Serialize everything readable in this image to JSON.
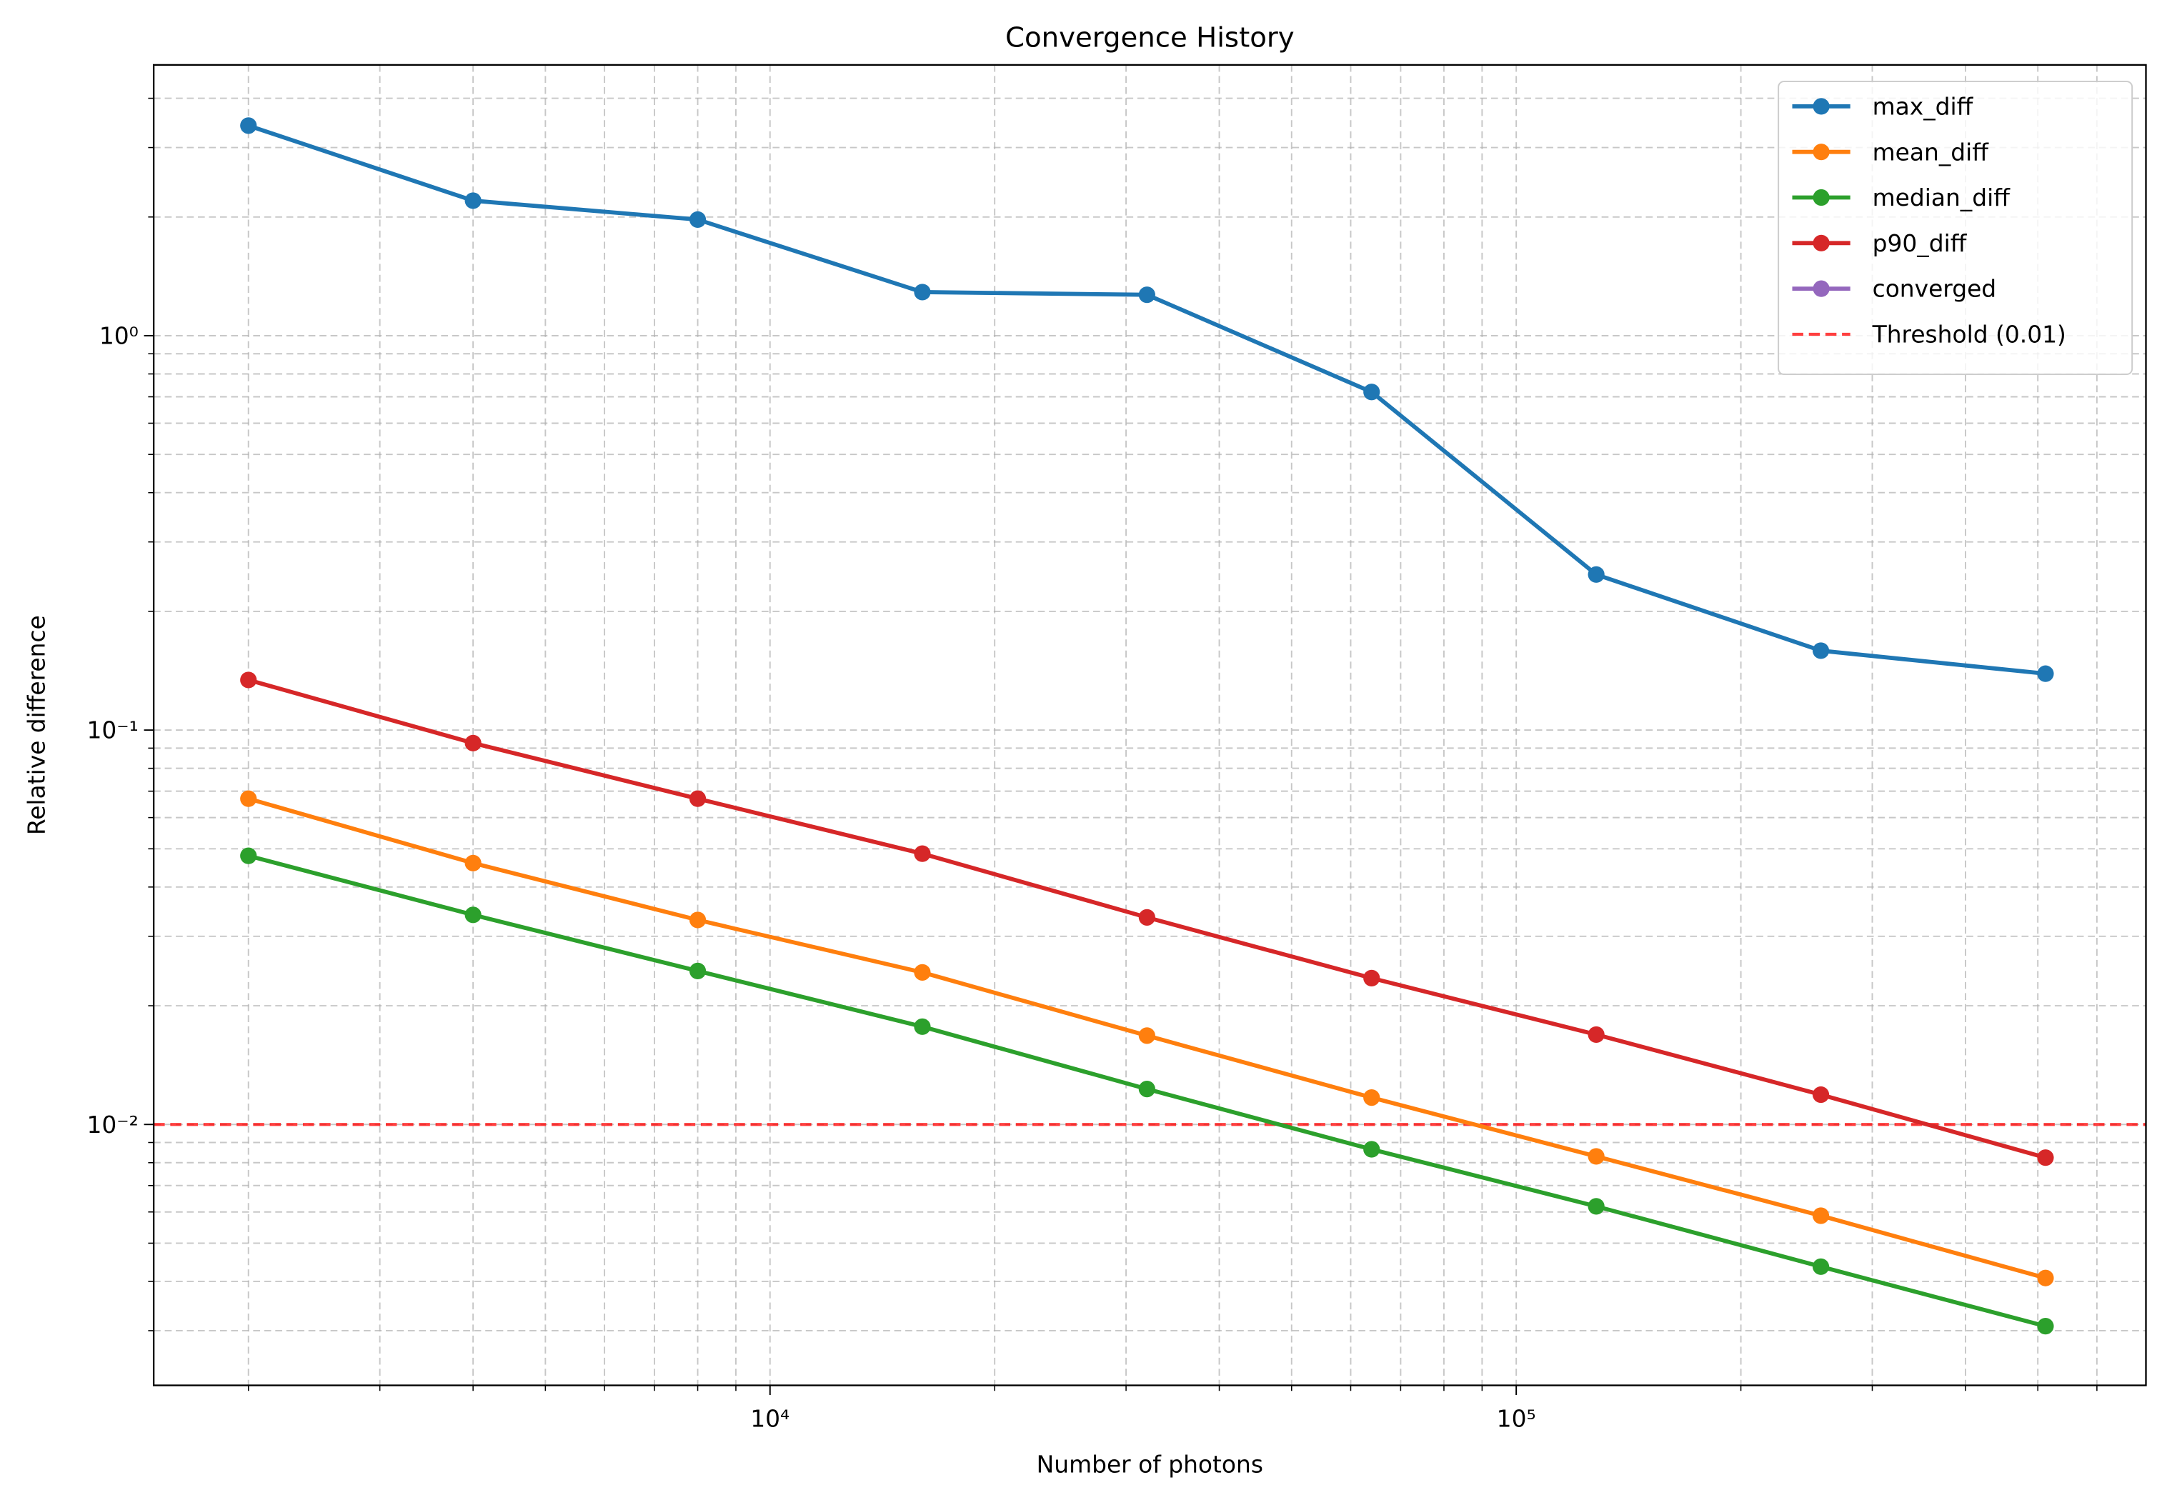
{
  "chart_data": {
    "type": "line",
    "title": "Convergence History",
    "xlabel": "Number of photons",
    "ylabel": "Relative difference",
    "xscale": "log",
    "yscale": "log",
    "grid": true,
    "legend": "upper right",
    "x": [
      2000,
      4000,
      8000,
      16000,
      32000,
      64000,
      128000,
      256000,
      512000
    ],
    "series": [
      {
        "name": "max_diff",
        "color": "#1f77b4",
        "values": [
          3.41,
          2.2,
          1.97,
          1.29,
          1.27,
          0.72,
          0.248,
          0.159,
          0.139
        ]
      },
      {
        "name": "mean_diff",
        "color": "#ff7f0e",
        "values": [
          0.067,
          0.046,
          0.033,
          0.0243,
          0.0168,
          0.0117,
          0.0083,
          0.00587,
          0.00408
        ]
      },
      {
        "name": "median_diff",
        "color": "#2ca02c",
        "values": [
          0.048,
          0.034,
          0.0245,
          0.0177,
          0.0123,
          0.00865,
          0.0062,
          0.00436,
          0.00308
        ]
      },
      {
        "name": "p90_diff",
        "color": "#d62728",
        "values": [
          0.134,
          0.0927,
          0.067,
          0.0486,
          0.0335,
          0.0235,
          0.0169,
          0.0119,
          0.00824
        ]
      },
      {
        "name": "converged",
        "color": "#9467bd",
        "values": [
          null,
          null,
          null,
          null,
          null,
          null,
          null,
          null,
          null
        ]
      }
    ],
    "hlines": [
      {
        "name": "Threshold (0.01)",
        "value": 0.01,
        "color": "#ff0000"
      }
    ],
    "xlim": [
      1493,
      698000
    ],
    "ylim": [
      0.00218,
      4.86
    ],
    "xticks": [
      {
        "value": 10000,
        "label": "10⁴"
      },
      {
        "value": 100000,
        "label": "10⁵"
      }
    ],
    "yticks": [
      {
        "value": 0.01,
        "label": "10⁻²"
      },
      {
        "value": 0.1,
        "label": "10⁻¹"
      },
      {
        "value": 1,
        "label": "10⁰"
      }
    ],
    "xminor_ticks": [
      2000,
      3000,
      4000,
      5000,
      6000,
      7000,
      8000,
      9000,
      20000,
      30000,
      40000,
      50000,
      60000,
      70000,
      80000,
      90000,
      200000,
      300000,
      400000,
      500000,
      600000
    ],
    "yminor_ticks": [
      0.003,
      0.004,
      0.005,
      0.006,
      0.007,
      0.008,
      0.009,
      0.02,
      0.03,
      0.04,
      0.05,
      0.06,
      0.07,
      0.08,
      0.09,
      0.2,
      0.3,
      0.4,
      0.5,
      0.6,
      0.7,
      0.8,
      0.9,
      2,
      3,
      4
    ]
  }
}
